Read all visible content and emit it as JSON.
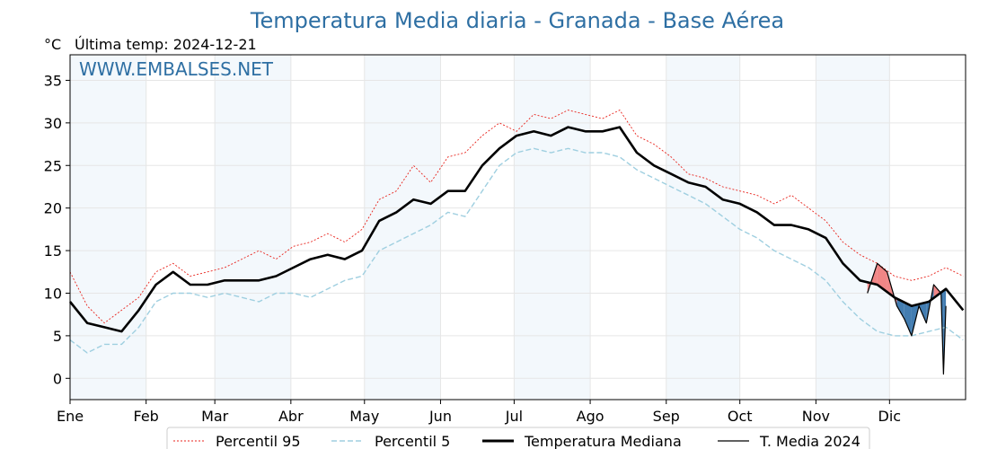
{
  "chart_data": {
    "type": "line",
    "title": "Temperatura Media diaria - Granada - Base Aérea",
    "unit_label": "°C",
    "last_temp_label": "Última temp: 2024-12-21",
    "watermark": "WWW.EMBALSES.NET",
    "xlabel": "",
    "ylabel": "",
    "ylim": [
      -2.5,
      38
    ],
    "yticks": [
      0,
      5,
      10,
      15,
      20,
      25,
      30,
      35
    ],
    "x_tick_labels": [
      "Ene",
      "Feb",
      "Mar",
      "Abr",
      "May",
      "Jun",
      "Jul",
      "Ago",
      "Sep",
      "Oct",
      "Nov",
      "Dic"
    ],
    "x_tick_days": [
      1,
      32,
      60,
      91,
      121,
      152,
      182,
      213,
      244,
      274,
      305,
      335
    ],
    "xlim_days": [
      1,
      366
    ],
    "grid": true,
    "shaded_months": [
      "Ene",
      "Mar",
      "May",
      "Jul",
      "Sep",
      "Nov"
    ],
    "legend_position": "bottom",
    "colors": {
      "title": "#2e6fa3",
      "watermark": "#2e6fa3",
      "p95": "#e8231c",
      "p5": "#9fcfe0",
      "median": "#000000",
      "year": "#000000",
      "above_median_fill": "#f08080",
      "below_median_fill": "#2f6fa8",
      "month_shade": "#f3f8fc"
    },
    "series": [
      {
        "name": "Percentil 95",
        "x": [
          1,
          8,
          15,
          22,
          29,
          36,
          43,
          50,
          57,
          64,
          71,
          78,
          85,
          92,
          99,
          106,
          113,
          120,
          127,
          134,
          141,
          148,
          155,
          162,
          169,
          176,
          183,
          190,
          197,
          204,
          211,
          218,
          225,
          232,
          239,
          246,
          253,
          260,
          267,
          274,
          281,
          288,
          295,
          302,
          309,
          316,
          323,
          330,
          337,
          344,
          351,
          358,
          365
        ],
        "values": [
          12.5,
          8.5,
          6.5,
          8,
          9.5,
          12.5,
          13.5,
          12,
          12.5,
          13,
          14,
          15,
          14,
          15.5,
          16,
          17,
          16,
          17.5,
          21,
          22,
          25,
          23,
          26,
          26.5,
          28.5,
          30,
          29,
          31,
          30.5,
          31.5,
          31,
          30.5,
          31.5,
          28.5,
          27.5,
          26,
          24,
          23.5,
          22.5,
          22,
          21.5,
          20.5,
          21.5,
          20,
          18.5,
          16,
          14.5,
          13.5,
          12,
          11.5,
          12,
          13,
          12
        ]
      },
      {
        "name": "Percentil 5",
        "x": [
          1,
          8,
          15,
          22,
          29,
          36,
          43,
          50,
          57,
          64,
          71,
          78,
          85,
          92,
          99,
          106,
          113,
          120,
          127,
          134,
          141,
          148,
          155,
          162,
          169,
          176,
          183,
          190,
          197,
          204,
          211,
          218,
          225,
          232,
          239,
          246,
          253,
          260,
          267,
          274,
          281,
          288,
          295,
          302,
          309,
          316,
          323,
          330,
          337,
          344,
          351,
          358,
          365
        ],
        "values": [
          4.5,
          3,
          4,
          4,
          6,
          9,
          10,
          10,
          9.5,
          10,
          9.5,
          9,
          10,
          10,
          9.5,
          10.5,
          11.5,
          12,
          15,
          16,
          17,
          18,
          19.5,
          19,
          22,
          25,
          26.5,
          27,
          26.5,
          27,
          26.5,
          26.5,
          26,
          24.5,
          23.5,
          22.5,
          21.5,
          20.5,
          19,
          17.5,
          16.5,
          15,
          14,
          13,
          11.5,
          9,
          7,
          5.5,
          5,
          5,
          5.5,
          6,
          4.5
        ]
      },
      {
        "name": "Temperatura Mediana",
        "x": [
          1,
          8,
          15,
          22,
          29,
          36,
          43,
          50,
          57,
          64,
          71,
          78,
          85,
          92,
          99,
          106,
          113,
          120,
          127,
          134,
          141,
          148,
          155,
          162,
          169,
          176,
          183,
          190,
          197,
          204,
          211,
          218,
          225,
          232,
          239,
          246,
          253,
          260,
          267,
          274,
          281,
          288,
          295,
          302,
          309,
          316,
          323,
          330,
          337,
          344,
          351,
          358,
          365
        ],
        "values": [
          9,
          6.5,
          6,
          5.5,
          8,
          11,
          12.5,
          11,
          11,
          11.5,
          11.5,
          11.5,
          12,
          13,
          14,
          14.5,
          14,
          15,
          18.5,
          19.5,
          21,
          20.5,
          22,
          22,
          25,
          27,
          28.5,
          29,
          28.5,
          29.5,
          29,
          29,
          29.5,
          26.5,
          25,
          24,
          23,
          22.5,
          21,
          20.5,
          19.5,
          18,
          18,
          17.5,
          16.5,
          13.5,
          11.5,
          11,
          9.5,
          8.5,
          9,
          10.5,
          8
        ]
      },
      {
        "name": "T. Media 2024",
        "x": [
          326,
          330,
          334,
          338,
          341,
          344,
          347,
          350,
          353,
          356,
          357,
          358
        ],
        "values": [
          10,
          13.5,
          12.5,
          8.5,
          7,
          5,
          8.5,
          6.5,
          11,
          10,
          0.5,
          8.5
        ]
      }
    ]
  }
}
